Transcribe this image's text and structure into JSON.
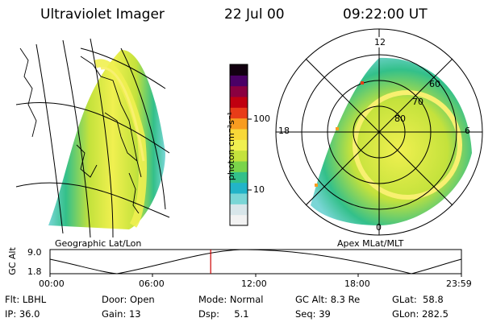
{
  "header": {
    "instrument": "Ultraviolet Imager",
    "date": "22 Jul 00",
    "time": "09:22:00 UT"
  },
  "left_panel": {
    "caption": "Geographic Lat/Lon"
  },
  "colorbar": {
    "unit_label": "photon cm⁻²s⁻¹",
    "tick_high": "100",
    "tick_low": "10",
    "scale": "log",
    "colors": [
      "#f2f2f2",
      "#d8e6ea",
      "#7ad6d6",
      "#22b4c8",
      "#33c08a",
      "#7ad44a",
      "#c4e23c",
      "#f0f050",
      "#f8d838",
      "#f89c20",
      "#e83c18",
      "#c00010",
      "#8a0040",
      "#4a0066",
      "#120010"
    ]
  },
  "right_panel": {
    "caption": "Apex MLat/MLT",
    "mlt_labels": {
      "top": "12",
      "left": "18",
      "right": "6",
      "bottom": "0"
    },
    "mlat_labels": [
      "60",
      "70",
      "80"
    ]
  },
  "altitude_plot": {
    "ylabel": "GC Alt",
    "y_high": "9.0",
    "y_low": "1.8",
    "x_ticks": [
      "00:00",
      "06:00",
      "12:00",
      "18:00",
      "23:59"
    ],
    "marker_time": "09:22",
    "marker_color": "#cc0000"
  },
  "info": {
    "flt": "Flt: LBHL",
    "ip": "IP: 36.0",
    "door": "Door: Open",
    "gain": "Gain: 13",
    "mode": "Mode: Normal",
    "dsp": "Dsp:     5.1",
    "gcalt": "GC Alt: 8.3 Re",
    "seq": "Seq: 39",
    "glat": "GLat:  58.8",
    "glon": "GLon: 282.5"
  }
}
